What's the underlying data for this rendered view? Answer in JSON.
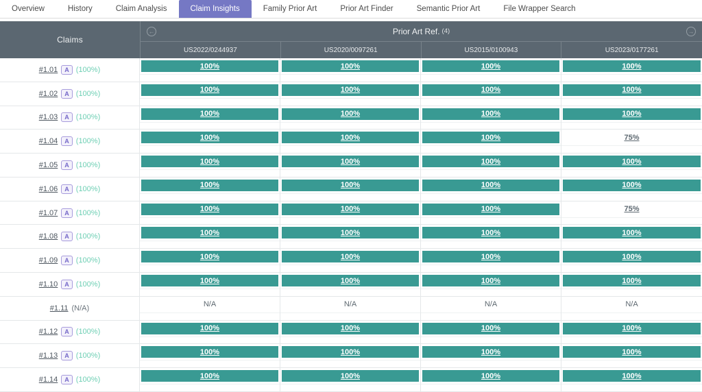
{
  "tabs": [
    {
      "label": "Overview",
      "active": false
    },
    {
      "label": "History",
      "active": false
    },
    {
      "label": "Claim Analysis",
      "active": false
    },
    {
      "label": "Claim Insights",
      "active": true
    },
    {
      "label": "Family Prior Art",
      "active": false
    },
    {
      "label": "Prior Art Finder",
      "active": false
    },
    {
      "label": "Semantic Prior Art",
      "active": false
    },
    {
      "label": "File Wrapper Search",
      "active": false
    }
  ],
  "table": {
    "claims_header": "Claims",
    "prior_art_title": "Prior Art Ref.",
    "prior_art_count": "(4)",
    "nav": {
      "left_icon": "circle-arrow-left",
      "right_icon": "circle-arrow-right"
    },
    "columns": [
      "US2022/0244937",
      "US2020/0097261",
      "US2015/0100943",
      "US2023/0177261"
    ],
    "rows": [
      {
        "claim": "#1.01",
        "badge": "A",
        "score": "(100%)",
        "values": [
          "100%",
          "100%",
          "100%",
          "100%"
        ]
      },
      {
        "claim": "#1.02",
        "badge": "A",
        "score": "(100%)",
        "values": [
          "100%",
          "100%",
          "100%",
          "100%"
        ]
      },
      {
        "claim": "#1.03",
        "badge": "A",
        "score": "(100%)",
        "values": [
          "100%",
          "100%",
          "100%",
          "100%"
        ]
      },
      {
        "claim": "#1.04",
        "badge": "A",
        "score": "(100%)",
        "values": [
          "100%",
          "100%",
          "100%",
          "75%"
        ]
      },
      {
        "claim": "#1.05",
        "badge": "A",
        "score": "(100%)",
        "values": [
          "100%",
          "100%",
          "100%",
          "100%"
        ]
      },
      {
        "claim": "#1.06",
        "badge": "A",
        "score": "(100%)",
        "values": [
          "100%",
          "100%",
          "100%",
          "100%"
        ]
      },
      {
        "claim": "#1.07",
        "badge": "A",
        "score": "(100%)",
        "values": [
          "100%",
          "100%",
          "100%",
          "75%"
        ]
      },
      {
        "claim": "#1.08",
        "badge": "A",
        "score": "(100%)",
        "values": [
          "100%",
          "100%",
          "100%",
          "100%"
        ]
      },
      {
        "claim": "#1.09",
        "badge": "A",
        "score": "(100%)",
        "values": [
          "100%",
          "100%",
          "100%",
          "100%"
        ]
      },
      {
        "claim": "#1.10",
        "badge": "A",
        "score": "(100%)",
        "values": [
          "100%",
          "100%",
          "100%",
          "100%"
        ]
      },
      {
        "claim": "#1.11",
        "badge": null,
        "score": "(N/A)",
        "values": [
          "N/A",
          "N/A",
          "N/A",
          "N/A"
        ]
      },
      {
        "claim": "#1.12",
        "badge": "A",
        "score": "(100%)",
        "values": [
          "100%",
          "100%",
          "100%",
          "100%"
        ]
      },
      {
        "claim": "#1.13",
        "badge": "A",
        "score": "(100%)",
        "values": [
          "100%",
          "100%",
          "100%",
          "100%"
        ]
      },
      {
        "claim": "#1.14",
        "badge": "A",
        "score": "(100%)",
        "values": [
          "100%",
          "100%",
          "100%",
          "100%"
        ]
      }
    ]
  },
  "colors": {
    "bar_teal": "#399a93",
    "active_tab_purple": "#7578c4",
    "header_slate": "#5b6771",
    "score_green": "#6ecfb4"
  },
  "glyphs": {
    "arrow_left": "←",
    "arrow_right": "→"
  }
}
